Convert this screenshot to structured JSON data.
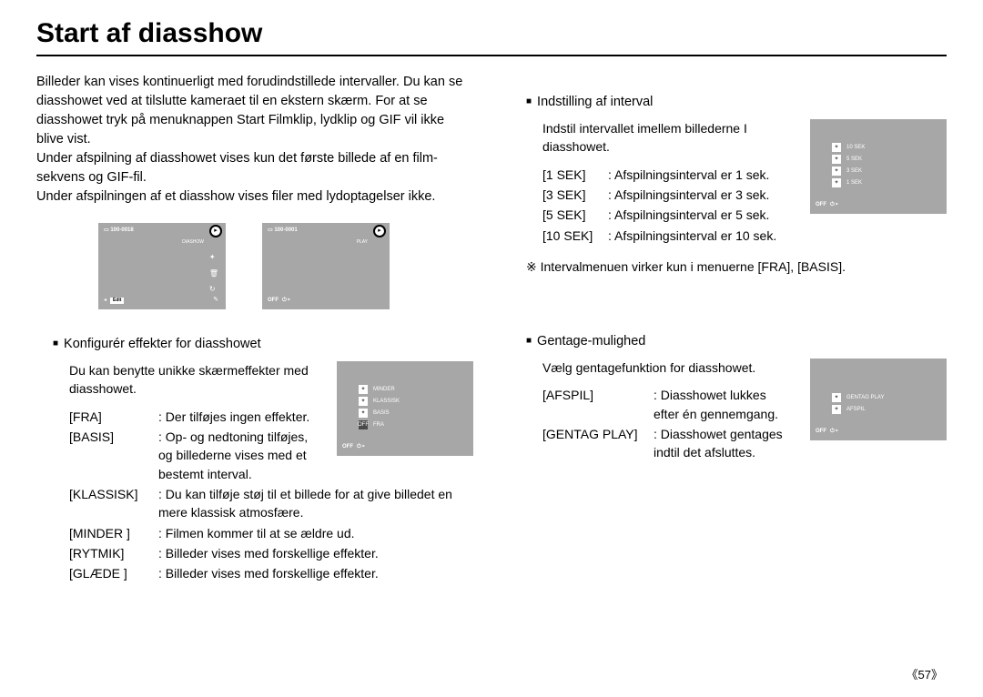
{
  "title": "Start af diasshow",
  "intro": "Billeder kan vises kontinuerligt med forudindstillede intervaller. Du kan se diasshowet ved at tilslutte kameraet til en ekstern skærm. For at se diasshowet tryk på menuknappen Start Filmklip, lydklip og GIF vil ikke blive vist.\nUnder afspilning af diasshowet vises kun det første billede af en film-sekvens og GIF-fil.\nUnder afspilningen af et diasshow vises filer med lydoptagelser ikke.",
  "lcd1": {
    "file": "100-0018",
    "mode": "DIASHOW",
    "edit": "Edit"
  },
  "lcd2": {
    "file": "100-0001",
    "mode": "PLAY",
    "off": "OFF"
  },
  "effects": {
    "head": "Konfigurér effekter for diasshowet",
    "desc": "Du kan benytte unikke skærmeffekter med diasshowet.",
    "rows": [
      {
        "label": "[FRA]",
        "value": ": Der tilføjes ingen effekter."
      },
      {
        "label": "[BASIS]",
        "value": ": Op- og nedtoning tilføjes, og billederne vises med et bestemt interval."
      },
      {
        "label": "[KLASSISK]",
        "value": ": Du kan tilføje støj til et billede for at give billedet en mere klassisk atmosfære."
      },
      {
        "label": "[MINDER ]",
        "value": ": Filmen kommer til at se ældre ud."
      },
      {
        "label": "[RYTMIK]",
        "value": ": Billeder vises med forskellige effekter."
      },
      {
        "label": "[GLÆDE ]",
        "value": ": Billeder vises med forskellige effekter."
      }
    ],
    "menu": [
      "MINDER",
      "KLASSISK",
      "BASIS",
      "FRA"
    ],
    "menu_off": "OFF"
  },
  "interval": {
    "head": "Indstilling af interval",
    "desc": "Indstil intervallet imellem billederne I diasshowet.",
    "rows": [
      {
        "label": "[1 SEK]",
        "value": ": Afspilningsinterval er 1 sek."
      },
      {
        "label": "[3 SEK]",
        "value": ": Afspilningsinterval er 3 sek."
      },
      {
        "label": "[5 SEK]",
        "value": ": Afspilningsinterval er 5 sek."
      },
      {
        "label": "[10 SEK]",
        "value": ": Afspilningsinterval er 10 sek."
      }
    ],
    "menu": [
      "10 SEK",
      "5 SEK",
      "3 SEK",
      "1 SEK"
    ],
    "menu_off": "OFF"
  },
  "note": "Intervalmenuen virker kun i menuerne [FRA], [BASIS].",
  "repeat": {
    "head": "Gentage-mulighed",
    "desc": "Vælg gentagefunktion for diasshowet.",
    "rows": [
      {
        "label": "[AFSPIL]",
        "value": ": Diasshowet lukkes efter én gennemgang."
      },
      {
        "label": "[GENTAG PLAY]",
        "value": ": Diasshowet gentages indtil det afsluttes."
      }
    ],
    "menu": [
      "GENTAG PLAY",
      "AFSPIL"
    ],
    "menu_off": "OFF"
  },
  "page_label_l": "《57》",
  "page_label_r": "《57》"
}
